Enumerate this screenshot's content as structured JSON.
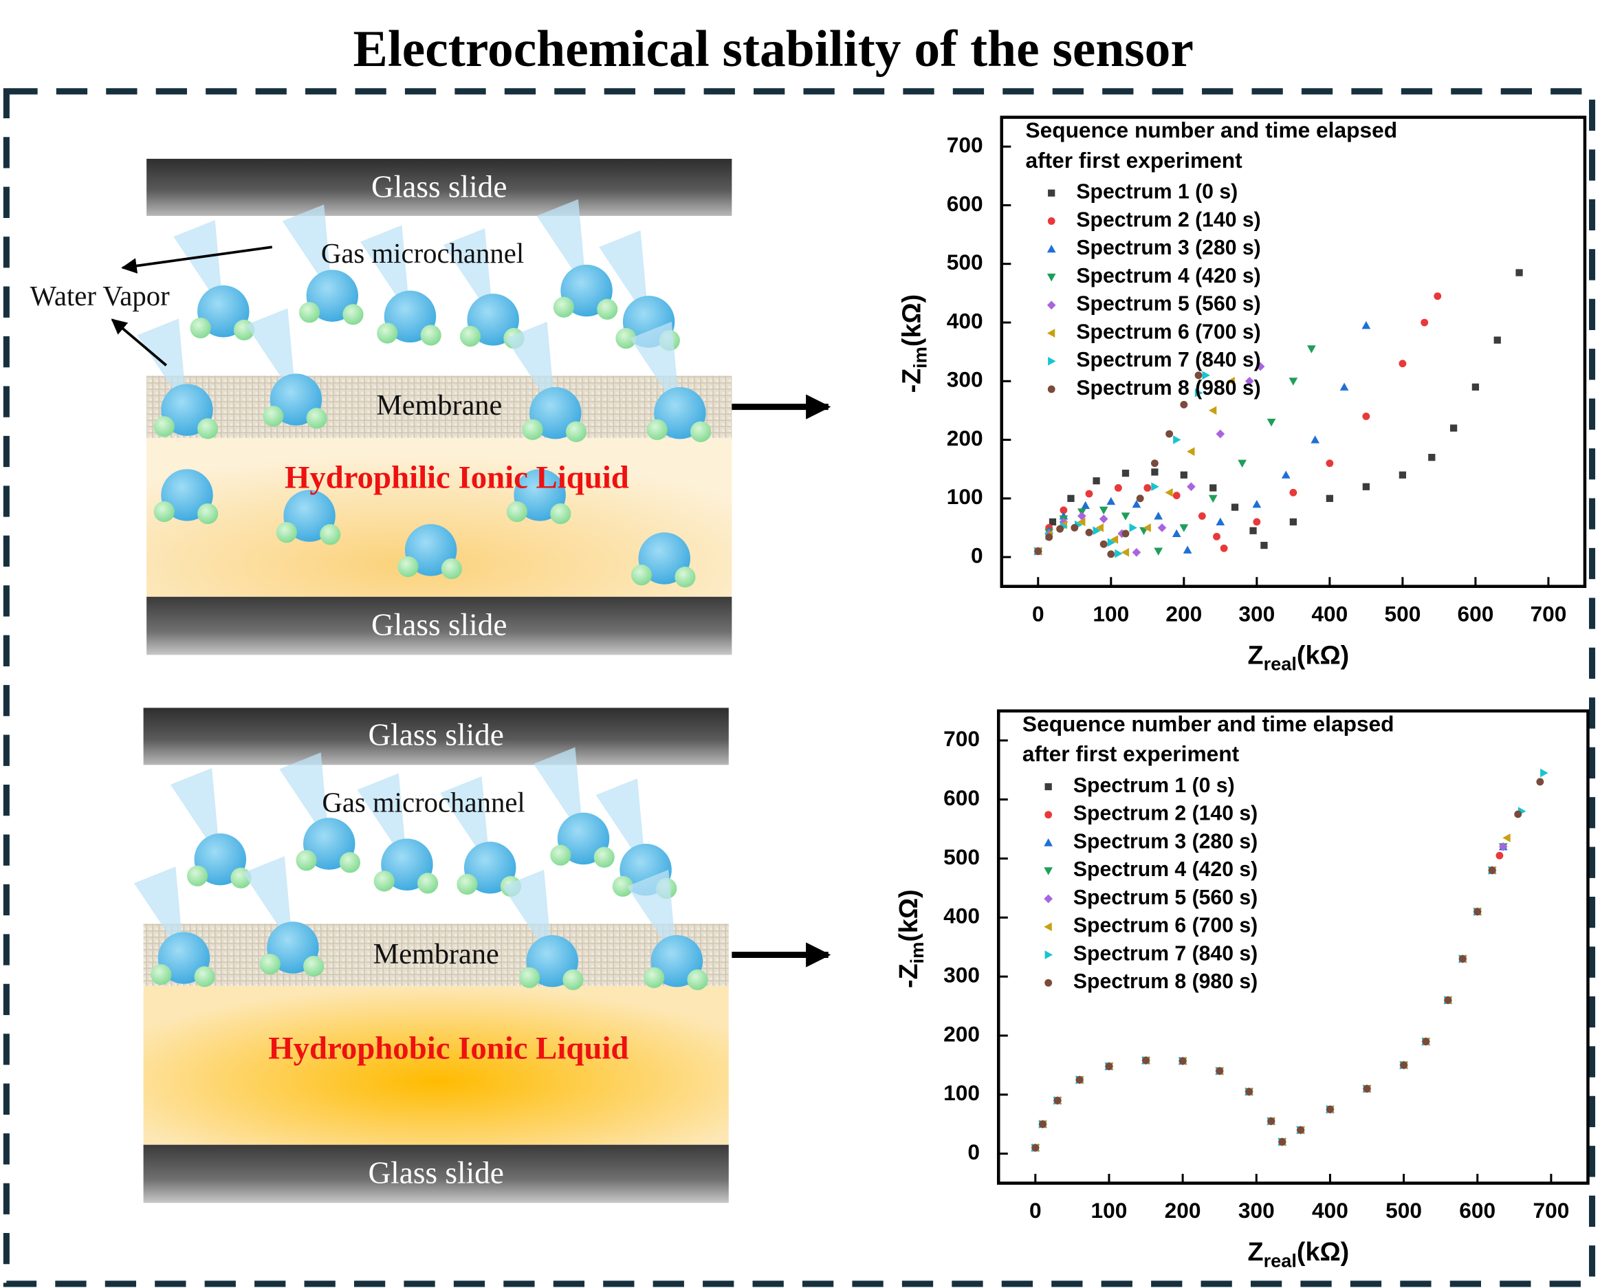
{
  "title": "Electrochemical stability of the sensor",
  "diagrams": [
    {
      "top_slide": "Glass slide",
      "channel": "Gas microchannel",
      "vapor": "Water Vapor",
      "membrane": "Membrane",
      "liquid": "Hydrophilic Ionic Liquid",
      "bottom_slide": "Glass slide"
    },
    {
      "top_slide": "Glass slide",
      "channel": "Gas microchannel",
      "membrane": "Membrane",
      "liquid": "Hydrophobic Ionic Liquid",
      "bottom_slide": "Glass slide"
    }
  ],
  "chart_data": [
    {
      "type": "scatter",
      "x_label": {
        "main": "Z",
        "sub": "real",
        "unit": "(kΩ)"
      },
      "y_label": {
        "main": "-Z",
        "sub": "im",
        "unit": "(kΩ)"
      },
      "legend_title": [
        "Sequence number and time elapsed",
        "after first experiment"
      ],
      "legend": "upper left",
      "xlim": [
        -50,
        750
      ],
      "ylim": [
        -50,
        750
      ],
      "xticks": [
        0,
        100,
        200,
        300,
        400,
        500,
        600,
        700
      ],
      "yticks": [
        0,
        100,
        200,
        300,
        400,
        500,
        600,
        700
      ],
      "series": [
        {
          "name": "Spectrum 1 (0 s)",
          "color": "#3c3c3c",
          "marker": "square",
          "x": [
            0,
            20,
            45,
            80,
            120,
            160,
            200,
            240,
            270,
            295,
            310,
            350,
            400,
            450,
            500,
            540,
            570,
            600,
            630,
            660
          ],
          "values": [
            10,
            60,
            100,
            130,
            143,
            145,
            140,
            118,
            85,
            45,
            20,
            60,
            100,
            120,
            140,
            170,
            220,
            290,
            370,
            485
          ]
        },
        {
          "name": "Spectrum 2 (140 s)",
          "color": "#e8393a",
          "marker": "circle",
          "x": [
            0,
            15,
            35,
            70,
            110,
            150,
            190,
            225,
            245,
            255,
            300,
            350,
            400,
            450,
            500,
            530,
            548
          ],
          "values": [
            10,
            50,
            80,
            108,
            118,
            118,
            105,
            70,
            35,
            15,
            60,
            110,
            160,
            240,
            330,
            400,
            445
          ]
        },
        {
          "name": "Spectrum 3 (280 s)",
          "color": "#1f6fd6",
          "marker": "triangle-up",
          "x": [
            0,
            15,
            35,
            65,
            100,
            135,
            165,
            190,
            205,
            250,
            300,
            340,
            380,
            420,
            450
          ],
          "values": [
            10,
            45,
            70,
            88,
            95,
            90,
            70,
            40,
            12,
            60,
            90,
            140,
            200,
            290,
            395
          ]
        },
        {
          "name": "Spectrum 4 (420 s)",
          "color": "#1e9e5a",
          "marker": "triangle-down",
          "x": [
            0,
            15,
            35,
            60,
            90,
            120,
            145,
            165,
            200,
            240,
            280,
            320,
            350,
            375
          ],
          "values": [
            10,
            42,
            65,
            77,
            80,
            70,
            45,
            10,
            50,
            100,
            160,
            230,
            300,
            355
          ]
        },
        {
          "name": "Spectrum 5 (560 s)",
          "color": "#a864e0",
          "marker": "diamond",
          "x": [
            0,
            15,
            35,
            60,
            90,
            115,
            135,
            170,
            210,
            250,
            290,
            305
          ],
          "values": [
            10,
            40,
            60,
            70,
            65,
            40,
            8,
            50,
            120,
            210,
            300,
            325
          ]
        },
        {
          "name": "Spectrum 6 (700 s)",
          "color": "#c8a012",
          "marker": "triangle-left",
          "x": [
            0,
            15,
            35,
            60,
            85,
            105,
            120,
            150,
            180,
            210,
            240,
            265
          ],
          "values": [
            10,
            38,
            55,
            60,
            50,
            30,
            8,
            50,
            110,
            180,
            250,
            300
          ]
        },
        {
          "name": "Spectrum 7 (840 s)",
          "color": "#18c4d0",
          "marker": "triangle-right",
          "x": [
            0,
            15,
            35,
            55,
            80,
            100,
            110,
            130,
            160,
            190,
            220,
            230
          ],
          "values": [
            10,
            36,
            52,
            55,
            45,
            25,
            6,
            50,
            120,
            200,
            280,
            310
          ]
        },
        {
          "name": "Spectrum 8 (980 s)",
          "color": "#7a4a3a",
          "marker": "circle",
          "x": [
            0,
            15,
            30,
            50,
            70,
            90,
            100,
            120,
            140,
            160,
            180,
            200,
            220
          ],
          "values": [
            10,
            34,
            48,
            50,
            42,
            22,
            5,
            40,
            100,
            160,
            210,
            260,
            310
          ]
        }
      ]
    },
    {
      "type": "scatter",
      "x_label": {
        "main": "Z",
        "sub": "real",
        "unit": "(kΩ)"
      },
      "y_label": {
        "main": "-Z",
        "sub": "im",
        "unit": "(kΩ)"
      },
      "legend_title": [
        "Sequence number and time elapsed",
        "after first experiment"
      ],
      "legend": "upper left",
      "xlim": [
        -50,
        750
      ],
      "ylim": [
        -50,
        750
      ],
      "xticks": [
        0,
        100,
        200,
        300,
        400,
        500,
        600,
        700
      ],
      "yticks": [
        0,
        100,
        200,
        300,
        400,
        500,
        600,
        700
      ],
      "series": [
        {
          "name": "Spectrum 1 (0 s)",
          "color": "#3c3c3c",
          "marker": "square",
          "x": [
            0,
            10,
            30,
            60,
            100,
            150,
            200,
            250,
            290,
            320,
            335,
            360,
            400,
            450,
            500,
            530,
            560,
            580,
            600,
            620
          ],
          "values": [
            10,
            50,
            90,
            125,
            148,
            158,
            157,
            140,
            105,
            55,
            20,
            40,
            75,
            110,
            150,
            190,
            260,
            330,
            410,
            480
          ]
        },
        {
          "name": "Spectrum 2 (140 s)",
          "color": "#e8393a",
          "marker": "circle",
          "x": [
            0,
            10,
            30,
            60,
            100,
            150,
            200,
            250,
            290,
            320,
            335,
            360,
            400,
            450,
            500,
            530,
            560,
            580,
            600,
            620,
            630
          ],
          "values": [
            10,
            50,
            90,
            125,
            148,
            158,
            157,
            140,
            105,
            55,
            20,
            40,
            75,
            110,
            150,
            190,
            260,
            330,
            410,
            480,
            505
          ]
        },
        {
          "name": "Spectrum 3 (280 s)",
          "color": "#1f6fd6",
          "marker": "triangle-up",
          "x": [
            0,
            10,
            30,
            60,
            100,
            150,
            200,
            250,
            290,
            320,
            335,
            360,
            400,
            450,
            500,
            530,
            560,
            580,
            600,
            620,
            635
          ],
          "values": [
            10,
            50,
            90,
            125,
            148,
            158,
            157,
            140,
            105,
            55,
            20,
            40,
            75,
            110,
            150,
            190,
            260,
            330,
            410,
            480,
            520
          ]
        },
        {
          "name": "Spectrum 4 (420 s)",
          "color": "#1e9e5a",
          "marker": "triangle-down",
          "x": [
            0,
            10,
            30,
            60,
            100,
            150,
            200,
            250,
            290,
            320,
            335,
            360,
            400,
            450,
            500,
            530,
            560,
            580,
            600,
            620,
            635
          ],
          "values": [
            10,
            50,
            90,
            125,
            148,
            158,
            157,
            140,
            105,
            55,
            20,
            40,
            75,
            110,
            150,
            190,
            260,
            330,
            410,
            480,
            520
          ]
        },
        {
          "name": "Spectrum 5 (560 s)",
          "color": "#a864e0",
          "marker": "diamond",
          "x": [
            0,
            10,
            30,
            60,
            100,
            150,
            200,
            250,
            290,
            320,
            335,
            360,
            400,
            450,
            500,
            530,
            560,
            580,
            600,
            620,
            635
          ],
          "values": [
            10,
            50,
            90,
            125,
            148,
            158,
            157,
            140,
            105,
            55,
            20,
            40,
            75,
            110,
            150,
            190,
            260,
            330,
            410,
            480,
            520
          ]
        },
        {
          "name": "Spectrum 6 (700 s)",
          "color": "#c8a012",
          "marker": "triangle-left",
          "x": [
            0,
            10,
            30,
            60,
            100,
            150,
            200,
            250,
            290,
            320,
            335,
            360,
            400,
            450,
            500,
            530,
            560,
            580,
            600,
            620,
            640
          ],
          "values": [
            10,
            50,
            90,
            125,
            148,
            158,
            157,
            140,
            105,
            55,
            20,
            40,
            75,
            110,
            150,
            190,
            260,
            330,
            410,
            480,
            535
          ]
        },
        {
          "name": "Spectrum 7 (840 s)",
          "color": "#18c4d0",
          "marker": "triangle-right",
          "x": [
            0,
            10,
            30,
            60,
            100,
            150,
            200,
            250,
            290,
            320,
            335,
            360,
            400,
            450,
            500,
            530,
            560,
            580,
            600,
            620,
            660,
            690
          ],
          "values": [
            10,
            50,
            90,
            125,
            148,
            158,
            157,
            140,
            105,
            55,
            20,
            40,
            75,
            110,
            150,
            190,
            260,
            330,
            410,
            480,
            580,
            645
          ]
        },
        {
          "name": "Spectrum 8 (980 s)",
          "color": "#7a4a3a",
          "marker": "circle",
          "x": [
            0,
            10,
            30,
            60,
            100,
            150,
            200,
            250,
            290,
            320,
            335,
            360,
            400,
            450,
            500,
            530,
            560,
            580,
            600,
            620,
            655,
            685
          ],
          "values": [
            10,
            50,
            90,
            125,
            148,
            158,
            157,
            140,
            105,
            55,
            20,
            40,
            75,
            110,
            150,
            190,
            260,
            330,
            410,
            480,
            575,
            630
          ]
        }
      ]
    }
  ]
}
